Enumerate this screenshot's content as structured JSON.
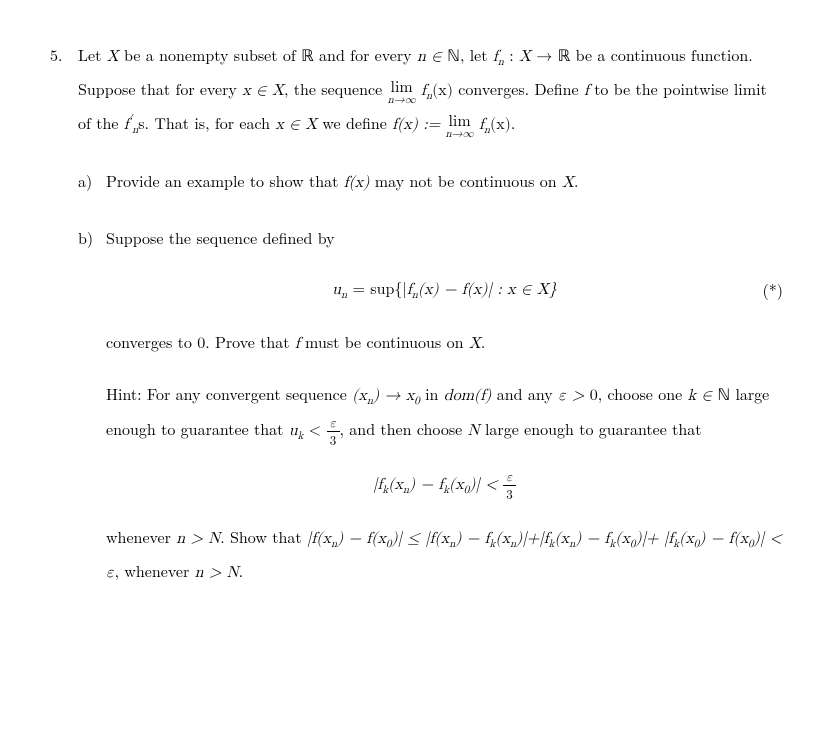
{
  "problem": {
    "number": "5.",
    "intro_a": "Let ",
    "X": "X",
    "intro_b": " be a nonempty subset of ",
    "R": "ℝ",
    "intro_c": " and for every ",
    "n_in_N": "n ∈ ",
    "N": "ℕ",
    "intro_d": ", let ",
    "fn_map": "f",
    "fn_sub": "n",
    "colon": " : ",
    "arrow": " → ",
    "intro_e": " be a continuous",
    "line2a": "function. Suppose that for every ",
    "x_in_X": "x ∈ X",
    "line2b": ", the sequence ",
    "lim_label": "lim",
    "lim_sub": "n→∞",
    "fnx": "f",
    "paren_x": "(x)",
    "line2c": " converges. Define ",
    "f": "f",
    "line2d": " to",
    "line3a": "be the pointwise limit of the ",
    "fns": "f",
    "prime": "′",
    "s_suffix": "s",
    "line3b": ". That is, for each ",
    "line3c": " we define ",
    "fx_def": "f(x) := ",
    "period": "."
  },
  "part_a": {
    "label": "a)",
    "text_a": "Provide an example to show that ",
    "fx": "f(x)",
    "text_b": " may not be continuous on ",
    "X": "X",
    "period": "."
  },
  "part_b": {
    "label": "b)",
    "text_a": "Suppose the sequence defined by",
    "eq_lhs": "u",
    "eq_sub": "n",
    "eq_eq": " = sup{|",
    "eq_fn": "f",
    "eq_fnsub": "n",
    "eq_mid": "(x) − f(x)| : x ∈ X}",
    "eq_tag": "(*)",
    "after_eq": "converges to 0. Prove that ",
    "f": "f",
    "after_eq2": " must be continuous on ",
    "X": "X",
    "period": ".",
    "hint_a": "Hint: For any convergent sequence ",
    "hint_seq": "(x",
    "hint_seq_sub": "n",
    "hint_seq_close": ") → x",
    "hint_zero": "0",
    "hint_b": " in ",
    "dom": "dom(f)",
    "hint_c": " and any ",
    "eps": "ε > ",
    "zero": "0",
    "hint_d": ", choose one",
    "hint_line2a": "k ∈ ",
    "hint_line2b": " large enough to guarantee that ",
    "uk": "u",
    "uk_sub": "k",
    "lt": " < ",
    "frac_num": "ε",
    "frac_den": "3",
    "hint_line2c": ", and then choose ",
    "Nvar": "N",
    "hint_line2d": " large enough to",
    "hint_line3": "guarantee that",
    "eq2_a": "|f",
    "eq2_sub_k": "k",
    "eq2_b": "(x",
    "eq2_sub_n": "n",
    "eq2_c": ") − f",
    "eq2_d": "(x",
    "eq2_sub_0": "0",
    "eq2_e": ")| < ",
    "hint_when_a": "whenever ",
    "hint_when_b": "n > N",
    "hint_when_c": ". Show that ",
    "chain_a": "|f(x",
    "chain_b": ") − f(x",
    "chain_c": ")| ≤ |f(x",
    "chain_d": ") − f",
    "chain_e": "(x",
    "chain_f": ")|+|f",
    "chain_g": "(x",
    "chain_h": ") − f",
    "chain_i": "(x",
    "chain_j": ")|+",
    "last_a": "|f",
    "last_b": "(x",
    "last_c": ") − f(x",
    "last_d": ")| < ε",
    "last_e": ", whenever ",
    "last_f": "n > N",
    "last_g": "."
  }
}
